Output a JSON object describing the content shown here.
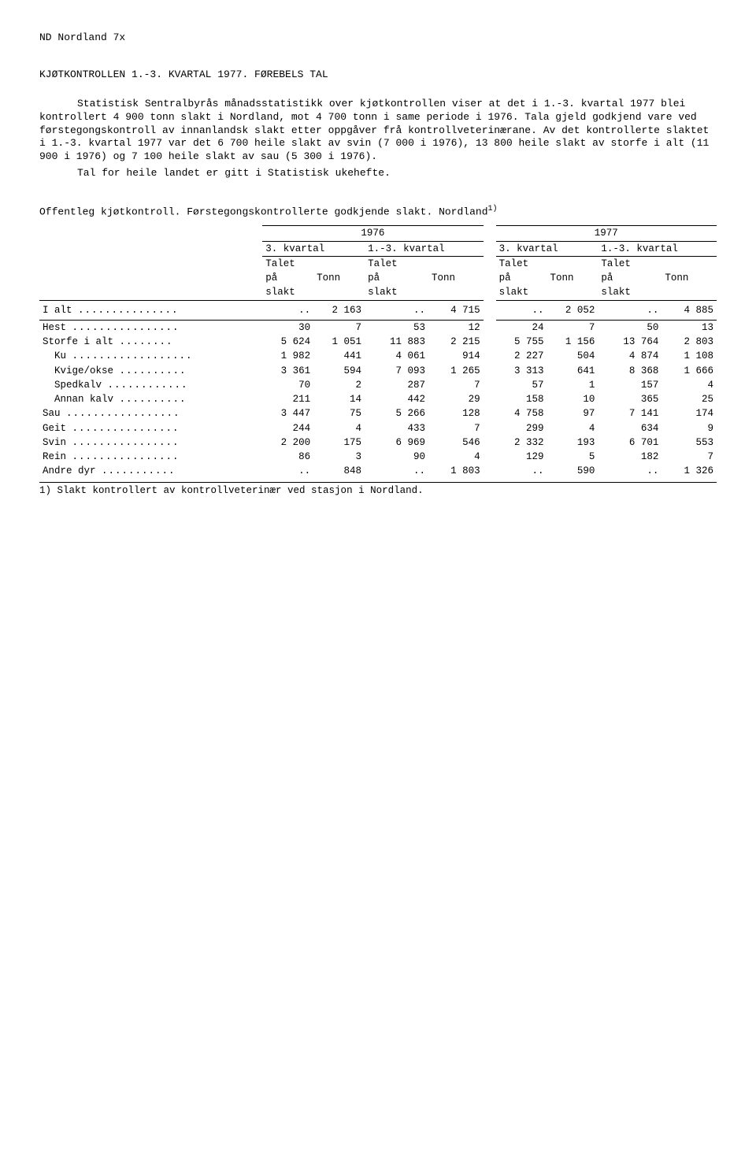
{
  "header": "ND  Nordland  7x",
  "title": "KJØTKONTROLLEN 1.-3. KVARTAL 1977.  FØREBELS TAL",
  "paragraphs": [
    "Statistisk Sentralbyrås månadsstatistikk over kjøtkontrollen viser at det i 1.-3. kvartal 1977 blei kontrollert 4 900 tonn slakt i Nordland, mot 4 700 tonn i same periode i 1976. Tala gjeld godkjend vare ved førstegongskontroll av innanlandsk slakt etter oppgåver frå kontrollveterinærane. Av det kontrollerte slaktet i 1.-3. kvartal 1977 var det 6 700 heile slakt av svin (7 000 i 1976), 13 800 heile slakt av storfe i alt (11 900 i 1976) og 7 100 heile slakt av sau (5 300 i 1976).",
    "Tal for heile landet er gitt i Statistisk ukehefte."
  ],
  "table": {
    "title": "Offentleg kjøtkontroll.  Førstegongskontrollerte godkjende slakt.  Nordland",
    "title_sup": "1)",
    "years": [
      "1976",
      "1977"
    ],
    "quarter_groups": [
      "3. kvartal",
      "1.-3. kvartal",
      "3. kvartal",
      "1.-3. kvartal"
    ],
    "col_sub1": "Talet",
    "col_sub2": "på",
    "col_sub3": "slakt",
    "col_tonn": "Tonn",
    "rows": [
      {
        "label": "I alt",
        "dots": true,
        "v": [
          "..",
          "2 163",
          "..",
          "4 715",
          "..",
          "2 052",
          "..",
          "4 885"
        ],
        "gap": true
      },
      {
        "label": "Hest",
        "dots": true,
        "v": [
          "30",
          "7",
          "53",
          "12",
          "24",
          "7",
          "50",
          "13"
        ],
        "topline": true
      },
      {
        "label": "Storfe i alt",
        "dots": true,
        "v": [
          "5 624",
          "1 051",
          "11 883",
          "2 215",
          "5 755",
          "1 156",
          "13 764",
          "2 803"
        ]
      },
      {
        "label": "  Ku",
        "dots": true,
        "v": [
          "1 982",
          "441",
          "4 061",
          "914",
          "2 227",
          "504",
          "4 874",
          "1 108"
        ]
      },
      {
        "label": "  Kvige/okse",
        "dots": true,
        "v": [
          "3 361",
          "594",
          "7 093",
          "1 265",
          "3 313",
          "641",
          "8 368",
          "1 666"
        ]
      },
      {
        "label": "  Spedkalv",
        "dots": true,
        "v": [
          "70",
          "2",
          "287",
          "7",
          "57",
          "1",
          "157",
          "4"
        ]
      },
      {
        "label": "  Annan kalv",
        "dots": true,
        "v": [
          "211",
          "14",
          "442",
          "29",
          "158",
          "10",
          "365",
          "25"
        ]
      },
      {
        "label": "Sau",
        "dots": true,
        "v": [
          "3 447",
          "75",
          "5 266",
          "128",
          "4 758",
          "97",
          "7 141",
          "174"
        ]
      },
      {
        "label": "Geit",
        "dots": true,
        "v": [
          "244",
          "4",
          "433",
          "7",
          "299",
          "4",
          "634",
          "9"
        ]
      },
      {
        "label": "Svin",
        "dots": true,
        "v": [
          "2 200",
          "175",
          "6 969",
          "546",
          "2 332",
          "193",
          "6 701",
          "553"
        ]
      },
      {
        "label": "Rein",
        "dots": true,
        "v": [
          "86",
          "3",
          "90",
          "4",
          "129",
          "5",
          "182",
          "7"
        ]
      },
      {
        "label": "Andre dyr",
        "dots": true,
        "v": [
          "..",
          "848",
          "..",
          "1 803",
          "..",
          "590",
          "..",
          "1 326"
        ]
      }
    ],
    "footnote": "1) Slakt kontrollert av kontrollveterinær ved stasjon i Nordland."
  }
}
